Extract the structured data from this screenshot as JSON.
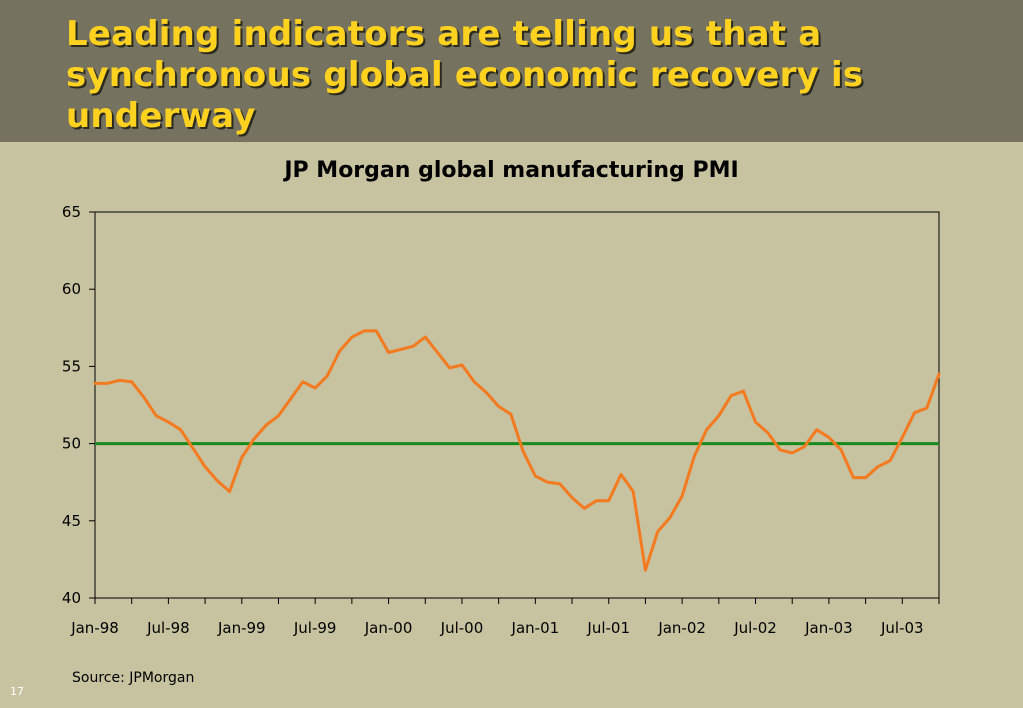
{
  "slide": {
    "title": "Leading indicators are telling us that a synchronous global economic recovery is underway",
    "source": "Source: JPMorgan",
    "page_number": "17"
  },
  "colors": {
    "background": "#c7c29f",
    "title_band": "#767260",
    "title_text": "#ffd21f",
    "series_line": "#f47a20",
    "reference_line": "#168a1a"
  },
  "chart_data": {
    "type": "line",
    "title": "JP Morgan global manufacturing PMI",
    "xlabel": "",
    "ylabel": "",
    "ylim": [
      40,
      65
    ],
    "yticks": [
      40,
      45,
      50,
      55,
      60,
      65
    ],
    "xtick_labels": [
      "Jan-98",
      "Jul-98",
      "Jan-99",
      "Jul-99",
      "Jan-00",
      "Jul-00",
      "Jan-01",
      "Jul-01",
      "Jan-02",
      "Jul-02",
      "Jan-03",
      "Jul-03"
    ],
    "x_start": "Jan-98",
    "x_end": "Oct-03",
    "grid": false,
    "legend": "none",
    "reference_line": {
      "value": 50
    },
    "series": [
      {
        "values": [
          53.9,
          53.9,
          54.1,
          54.0,
          53.0,
          51.8,
          51.4,
          50.9,
          49.7,
          48.5,
          47.6,
          46.9,
          49.1,
          50.3,
          51.2,
          51.8,
          52.9,
          54.0,
          53.6,
          54.4,
          56.0,
          56.9,
          57.3,
          57.3,
          55.9,
          56.1,
          56.3,
          56.9,
          55.9,
          54.9,
          55.1,
          54.0,
          53.3,
          52.4,
          51.9,
          49.5,
          47.9,
          47.5,
          47.4,
          46.5,
          45.8,
          46.3,
          46.3,
          48.0,
          46.9,
          41.8,
          44.3,
          45.2,
          46.6,
          49.2,
          50.9,
          51.8,
          53.1,
          53.4,
          51.4,
          50.7,
          49.6,
          49.4,
          49.8,
          50.9,
          50.4,
          49.6,
          47.8,
          47.8,
          48.5,
          48.9,
          50.4,
          52.0,
          52.3,
          54.5
        ]
      }
    ]
  }
}
